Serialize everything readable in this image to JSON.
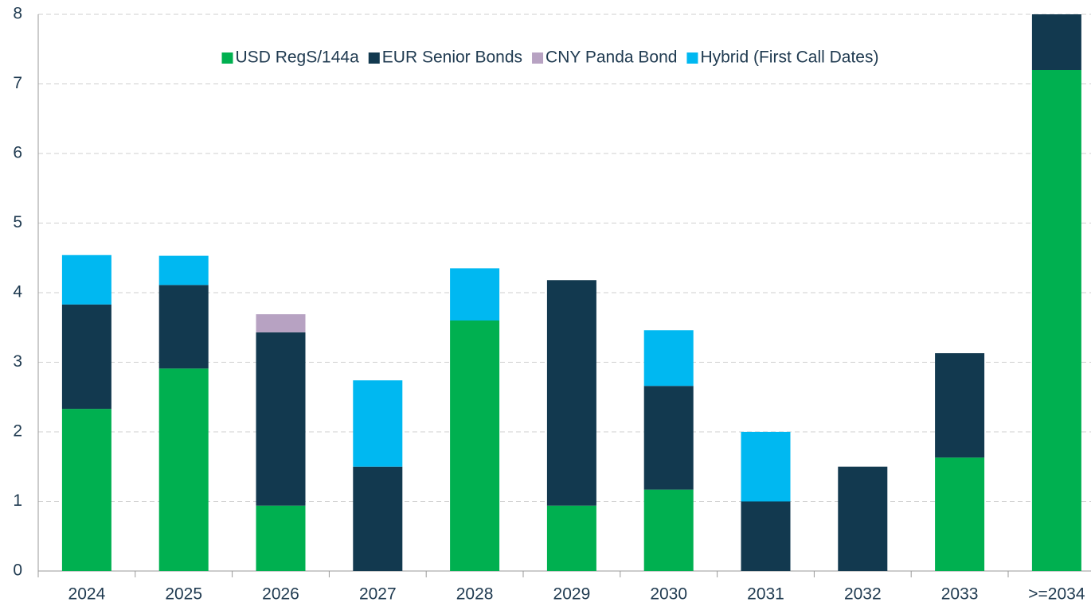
{
  "chart_data": {
    "type": "stacked_bar",
    "categories": [
      "2024",
      "2025",
      "2026",
      "2027",
      "2028",
      "2029",
      "2030",
      "2031",
      "2032",
      "2033",
      ">=2034"
    ],
    "series": [
      {
        "name": "USD RegS/144a",
        "color": "#00b050",
        "values": [
          2.33,
          2.91,
          0.94,
          0,
          3.6,
          0.94,
          1.17,
          0,
          0,
          1.63,
          7.2
        ]
      },
      {
        "name": "EUR Senior Bonds",
        "color": "#12394f",
        "values": [
          1.5,
          1.2,
          2.49,
          1.5,
          0,
          3.24,
          1.49,
          1.0,
          1.5,
          1.5,
          0.8
        ]
      },
      {
        "name": "CNY Panda Bond",
        "color": "#b7a2c2",
        "values": [
          0,
          0,
          0.26,
          0,
          0,
          0,
          0,
          0,
          0,
          0,
          0
        ]
      },
      {
        "name": "Hybrid (First Call Dates)",
        "color": "#00b8f1",
        "values": [
          0.71,
          0.42,
          0,
          1.24,
          0.75,
          0,
          0.8,
          1.0,
          0,
          0,
          0
        ]
      }
    ],
    "ylim": [
      0,
      8
    ],
    "yticks": [
      0,
      1,
      2,
      3,
      4,
      5,
      6,
      7,
      8
    ],
    "grid": true,
    "legend": "top"
  }
}
